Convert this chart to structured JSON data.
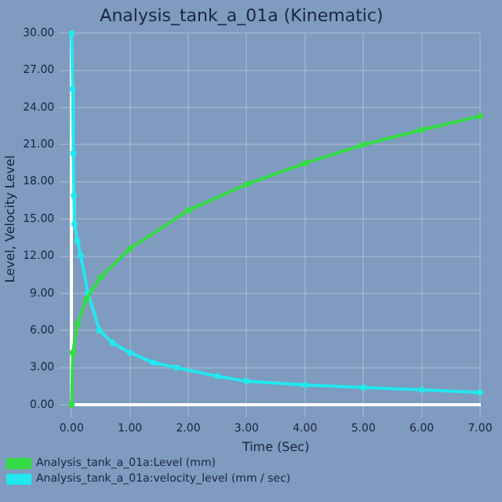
{
  "chart_data": {
    "type": "line",
    "title": "Analysis_tank_a_01a (Kinematic)",
    "xlabel": "Time (Sec)",
    "ylabel": "Level, Velocity Level",
    "series": [
      {
        "name": "Analysis_tank_a_01a:Level (mm)",
        "color": "#33dd44",
        "x": [
          0,
          0.02,
          0.1,
          0.25,
          0.5,
          1,
          2,
          3,
          4,
          5,
          6,
          7
        ],
        "values": [
          0,
          4.2,
          6.5,
          8.5,
          10.3,
          12.6,
          15.7,
          17.8,
          19.5,
          21.0,
          22.2,
          23.3
        ]
      },
      {
        "name": "Analysis_tank_a_01a:velocity_level (mm / sec)",
        "color": "#22e8f0",
        "x": [
          0,
          0.02,
          0.03,
          0.04,
          0.05,
          0.1,
          0.16,
          0.28,
          0.48,
          0.7,
          1,
          1.4,
          1.8,
          2.5,
          3,
          4,
          5,
          6,
          7
        ],
        "values": [
          30,
          25.5,
          20.3,
          16.9,
          14.6,
          13.2,
          12,
          9,
          6,
          5,
          4.2,
          3.4,
          3,
          2.3,
          1.9,
          1.6,
          1.4,
          1.2,
          1
        ]
      }
    ],
    "xlim": [
      0,
      7
    ],
    "xticks": [
      {
        "value": 0,
        "label": "0.00"
      },
      {
        "value": 1,
        "label": "1.00"
      },
      {
        "value": 2,
        "label": "2.00"
      },
      {
        "value": 3,
        "label": "3.00"
      },
      {
        "value": 4,
        "label": "4.00"
      },
      {
        "value": 5,
        "label": "5.00"
      },
      {
        "value": 6,
        "label": "6.00"
      },
      {
        "value": 7,
        "label": "7.00"
      }
    ],
    "ylim": [
      0,
      30
    ],
    "yticks": [
      {
        "value": 0,
        "label": "0.00"
      },
      {
        "value": 3,
        "label": "3.00"
      },
      {
        "value": 6,
        "label": "6.00"
      },
      {
        "value": 9,
        "label": "9.00"
      },
      {
        "value": 12,
        "label": "12.00"
      },
      {
        "value": 15,
        "label": "15.00"
      },
      {
        "value": 18,
        "label": "18.00"
      },
      {
        "value": 21,
        "label": "21.00"
      },
      {
        "value": 24,
        "label": "24.00"
      },
      {
        "value": 27,
        "label": "27.00"
      },
      {
        "value": 30,
        "label": "30.00"
      }
    ],
    "grid": true,
    "legend": "bottom",
    "marker": "circle",
    "line_style": "solid"
  }
}
